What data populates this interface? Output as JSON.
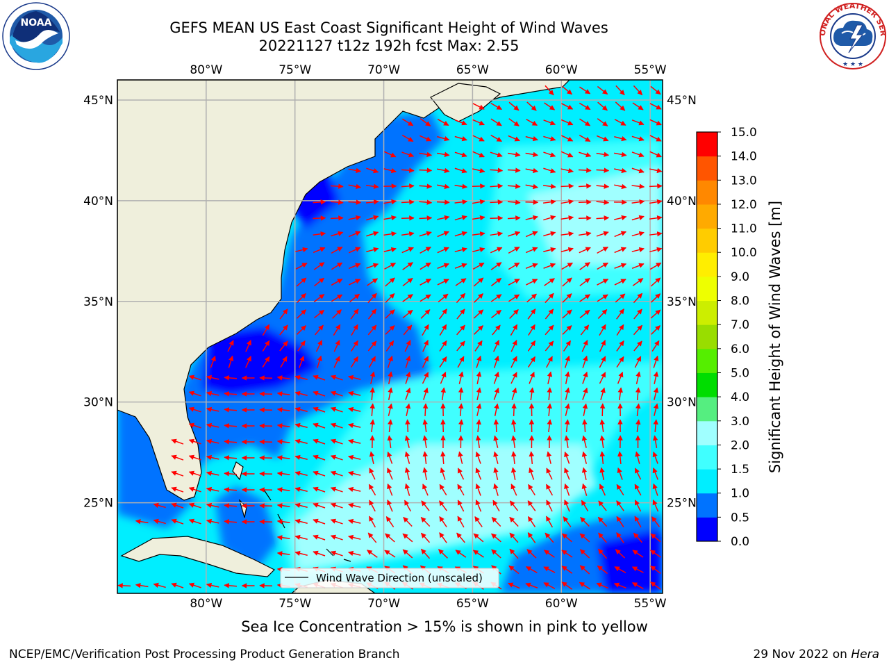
{
  "header": {
    "title_line1": "GEFS MEAN US East Coast Significant Height of Wind Waves",
    "title_line2": "20221127 t12z 192h fcst   Max: 2.55"
  },
  "logos": {
    "left": {
      "text": "NOAA",
      "icon": "noaa-logo"
    },
    "right": {
      "icon": "national-weather-service-logo"
    }
  },
  "map": {
    "lon_ticks": [
      "80°W",
      "75°W",
      "70°W",
      "65°W",
      "60°W",
      "55°W"
    ],
    "lat_ticks": [
      "45°N",
      "40°N",
      "35°N",
      "30°N",
      "25°N"
    ],
    "extent": {
      "lon_min": -85,
      "lon_max": -54.3,
      "lat_min": 20.5,
      "lat_max": 46
    },
    "legend_label": "Wind Wave Direction (unscaled)",
    "colors": {
      "land": "#efefdc",
      "coast": "#000000",
      "grid": "#b0b0b0",
      "arrow": "#ff0000"
    }
  },
  "colorbar": {
    "label": "Significant Height of Wind Waves [m]",
    "levels": [
      "0.0",
      "0.5",
      "1.0",
      "1.5",
      "2.0",
      "3.0",
      "4.0",
      "5.0",
      "6.0",
      "7.0",
      "8.0",
      "9.0",
      "10.0",
      "11.0",
      "12.0",
      "13.0",
      "14.0",
      "15.0"
    ],
    "colors": [
      "#0000ff",
      "#0073ff",
      "#00eeff",
      "#40ffff",
      "#a0ffff",
      "#55ee80",
      "#00dd00",
      "#55ee00",
      "#99dd00",
      "#ccee00",
      "#eeff00",
      "#ffee00",
      "#ffcc00",
      "#ffaa00",
      "#ff8800",
      "#ff5500",
      "#ff0000"
    ]
  },
  "footer": {
    "note": "Sea Ice Concentration > 15% is shown in pink to yellow",
    "left": "NCEP/EMC/Verification Post Processing Product Generation Branch",
    "right_date": "29 Nov 2022 on ",
    "right_host": "Hera"
  }
}
